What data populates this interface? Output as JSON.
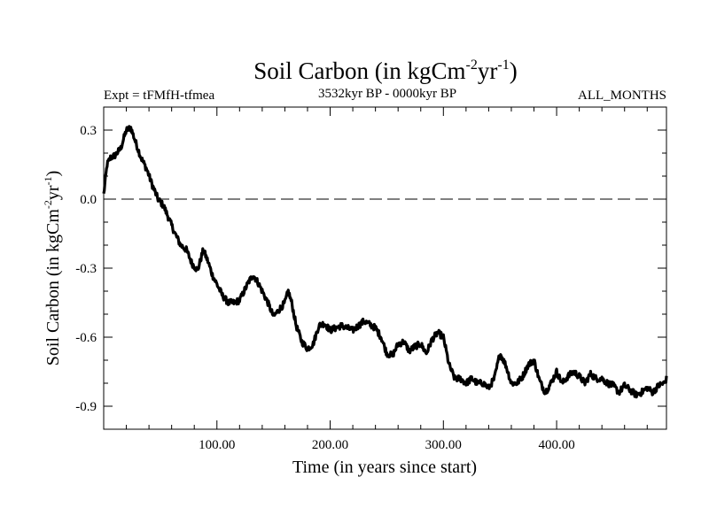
{
  "chart_data": {
    "type": "line",
    "title": {
      "main": "Soil Carbon (in kgCm",
      "exp1": "-2",
      "mid": "yr",
      "exp2": "-1",
      "end": ")"
    },
    "subtitle_left": "Expt = tFMfH-tfmea",
    "subtitle_center": "3532kyr BP - 0000kyr BP",
    "subtitle_right": "ALL_MONTHS",
    "xlabel": "Time (in years since start)",
    "ylabel": {
      "main": "Soil Carbon (in kgCm",
      "exp1": "-2",
      "mid": "yr",
      "exp2": "-1",
      "end": ")"
    },
    "xlim": [
      0,
      497
    ],
    "ylim": [
      -1.0,
      0.4
    ],
    "x_ticks": [
      100,
      200,
      300,
      400
    ],
    "x_tick_labels": [
      "100.00",
      "200.00",
      "300.00",
      "400.00"
    ],
    "y_ticks": [
      0.3,
      0.0,
      -0.3,
      -0.6,
      -0.9
    ],
    "y_tick_labels": [
      "0.3",
      "0.0",
      "-0.3",
      "-0.6",
      "-0.9"
    ],
    "reference_line": {
      "y": 0.0,
      "style": "dashed"
    },
    "series": [
      {
        "name": "Soil Carbon",
        "x": [
          0,
          3,
          6,
          10,
          15,
          20,
          24,
          28,
          33,
          38,
          43,
          48,
          53,
          58,
          63,
          68,
          73,
          78,
          83,
          88,
          92,
          96,
          100,
          105,
          110,
          115,
          120,
          124,
          128,
          132,
          136,
          140,
          145,
          150,
          155,
          160,
          163,
          166,
          170,
          175,
          180,
          185,
          190,
          195,
          200,
          210,
          220,
          230,
          240,
          245,
          250,
          255,
          260,
          265,
          270,
          275,
          280,
          285,
          290,
          295,
          300,
          305,
          310,
          315,
          320,
          325,
          330,
          335,
          340,
          345,
          350,
          355,
          360,
          365,
          370,
          375,
          380,
          385,
          390,
          395,
          400,
          405,
          410,
          415,
          420,
          425,
          430,
          435,
          440,
          445,
          450,
          455,
          460,
          465,
          470,
          475,
          480,
          485,
          490,
          495,
          497
        ],
        "y": [
          0.02,
          0.15,
          0.18,
          0.19,
          0.22,
          0.3,
          0.31,
          0.25,
          0.18,
          0.13,
          0.06,
          0.0,
          -0.03,
          -0.09,
          -0.15,
          -0.2,
          -0.22,
          -0.28,
          -0.31,
          -0.22,
          -0.27,
          -0.33,
          -0.37,
          -0.42,
          -0.45,
          -0.45,
          -0.44,
          -0.4,
          -0.36,
          -0.33,
          -0.36,
          -0.4,
          -0.45,
          -0.51,
          -0.48,
          -0.45,
          -0.4,
          -0.45,
          -0.55,
          -0.62,
          -0.65,
          -0.63,
          -0.55,
          -0.54,
          -0.57,
          -0.55,
          -0.57,
          -0.53,
          -0.56,
          -0.6,
          -0.67,
          -0.68,
          -0.63,
          -0.62,
          -0.66,
          -0.64,
          -0.63,
          -0.67,
          -0.61,
          -0.58,
          -0.6,
          -0.72,
          -0.78,
          -0.78,
          -0.8,
          -0.78,
          -0.8,
          -0.8,
          -0.82,
          -0.78,
          -0.67,
          -0.72,
          -0.8,
          -0.8,
          -0.77,
          -0.72,
          -0.7,
          -0.79,
          -0.84,
          -0.8,
          -0.75,
          -0.8,
          -0.77,
          -0.75,
          -0.77,
          -0.8,
          -0.76,
          -0.78,
          -0.78,
          -0.8,
          -0.81,
          -0.84,
          -0.81,
          -0.83,
          -0.85,
          -0.84,
          -0.82,
          -0.84,
          -0.81,
          -0.8,
          -0.78
        ]
      }
    ]
  }
}
